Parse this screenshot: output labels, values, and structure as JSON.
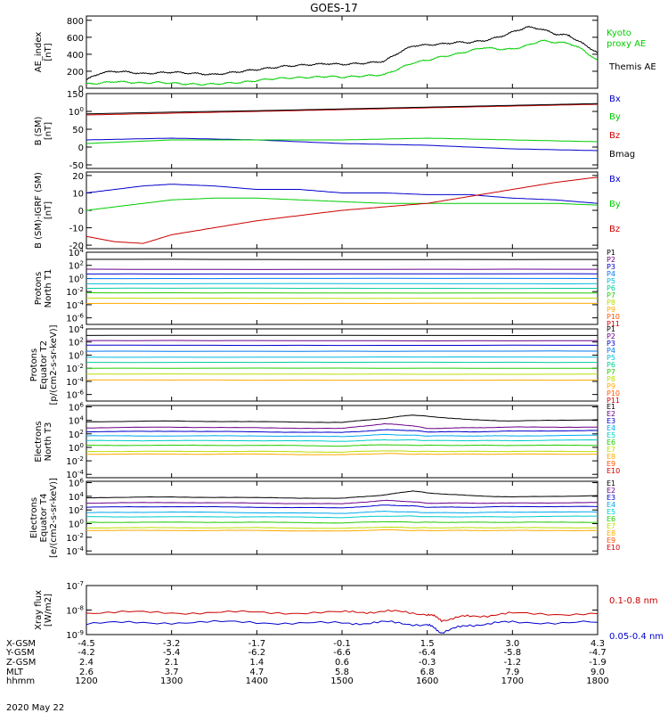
{
  "title": "GOES-17",
  "date_label": "2020 May 22",
  "orbit": {
    "rows": [
      {
        "label": "X-GSM",
        "values": [
          "-4.5",
          "-3.2",
          "-1.7",
          "-0.1",
          "1.5",
          "3.0",
          "4.3"
        ]
      },
      {
        "label": "Y-GSM",
        "values": [
          "-4.2",
          "-5.4",
          "-6.2",
          "-6.6",
          "-6.4",
          "-5.8",
          "-4.7"
        ]
      },
      {
        "label": "Z-GSM",
        "values": [
          "2.4",
          "2.1",
          "1.4",
          "0.6",
          "-0.3",
          "-1.2",
          "-1.9"
        ]
      },
      {
        "label": "MLT",
        "values": [
          "2.6",
          "3.7",
          "4.7",
          "5.8",
          "6.8",
          "7.9",
          "9.0"
        ]
      },
      {
        "label": "hhmm",
        "values": [
          "1200",
          "1300",
          "1400",
          "1500",
          "1600",
          "1700",
          "1800"
        ]
      }
    ]
  },
  "chart_data": [
    {
      "type": "line",
      "ylabel": "AE_index [nT]",
      "yscale": "linear",
      "ylim": [
        0,
        850
      ],
      "yticks": [
        "0",
        "200",
        "400",
        "600",
        "800"
      ],
      "legend": [
        {
          "name": "Kyoto proxy AE",
          "color": "#00cc00"
        },
        {
          "name": "Themis AE",
          "color": "#000000"
        }
      ],
      "x": [
        1200,
        1210,
        1220,
        1230,
        1240,
        1250,
        1300,
        1310,
        1320,
        1330,
        1340,
        1350,
        1400,
        1410,
        1420,
        1430,
        1440,
        1450,
        1500,
        1510,
        1520,
        1530,
        1540,
        1550,
        1600,
        1610,
        1620,
        1630,
        1640,
        1650,
        1700,
        1710,
        1720,
        1730,
        1740,
        1750,
        1800
      ],
      "series": [
        {
          "name": "Themis AE",
          "color": "#000000",
          "values": [
            100,
            180,
            200,
            190,
            170,
            180,
            190,
            180,
            170,
            160,
            180,
            200,
            220,
            240,
            260,
            270,
            280,
            290,
            280,
            290,
            300,
            320,
            420,
            500,
            510,
            520,
            540,
            540,
            560,
            600,
            660,
            720,
            700,
            640,
            620,
            520,
            420
          ]
        },
        {
          "name": "Kyoto proxy AE",
          "color": "#00cc00",
          "values": [
            50,
            60,
            80,
            70,
            60,
            70,
            60,
            50,
            45,
            50,
            60,
            70,
            90,
            110,
            120,
            125,
            130,
            140,
            130,
            140,
            150,
            160,
            230,
            300,
            330,
            370,
            400,
            440,
            480,
            460,
            460,
            500,
            560,
            540,
            530,
            450,
            320
          ]
        }
      ]
    },
    {
      "type": "line",
      "ylabel": "B (SM) [nT]",
      "yscale": "linear",
      "ylim": [
        -60,
        150
      ],
      "yticks": [
        "-50",
        "0",
        "50",
        "100",
        "150"
      ],
      "legend": [
        {
          "name": "Bx",
          "color": "#0000cc"
        },
        {
          "name": "By",
          "color": "#00cc00"
        },
        {
          "name": "Bz",
          "color": "#cc0000"
        },
        {
          "name": "Bmag",
          "color": "#000000"
        }
      ],
      "x": [
        1200,
        1300,
        1400,
        1500,
        1600,
        1700,
        1800
      ],
      "series": [
        {
          "name": "Bx",
          "color": "#0000cc",
          "values": [
            20,
            25,
            20,
            10,
            5,
            -5,
            -10
          ]
        },
        {
          "name": "By",
          "color": "#00cc00",
          "values": [
            10,
            20,
            20,
            20,
            25,
            20,
            15
          ]
        },
        {
          "name": "Bz",
          "color": "#cc0000",
          "values": [
            90,
            95,
            100,
            105,
            110,
            115,
            120
          ]
        },
        {
          "name": "Bmag",
          "color": "#000000",
          "values": [
            93,
            98,
            102,
            107,
            112,
            117,
            122
          ]
        }
      ]
    },
    {
      "type": "line",
      "ylabel": "B (SM)-IGRF (SM) [nT]",
      "yscale": "linear",
      "ylim": [
        -22,
        22
      ],
      "yticks": [
        "-20",
        "-10",
        "0",
        "10",
        "20"
      ],
      "legend": [
        {
          "name": "Bx",
          "color": "#0000cc"
        },
        {
          "name": "By",
          "color": "#00cc00"
        },
        {
          "name": "Bz",
          "color": "#cc0000"
        }
      ],
      "x": [
        1200,
        1220,
        1240,
        1300,
        1330,
        1400,
        1430,
        1500,
        1530,
        1600,
        1630,
        1700,
        1730,
        1800
      ],
      "series": [
        {
          "name": "Bx",
          "color": "#0000cc",
          "values": [
            10,
            12,
            14,
            15,
            14,
            12,
            12,
            10,
            10,
            9,
            9,
            7,
            6,
            4
          ]
        },
        {
          "name": "By",
          "color": "#00cc00",
          "values": [
            0,
            2,
            4,
            6,
            7,
            7,
            6,
            5,
            4,
            4,
            4,
            4,
            4,
            3
          ]
        },
        {
          "name": "Bz",
          "color": "#cc0000",
          "values": [
            -15,
            -18,
            -19,
            -14,
            -10,
            -6,
            -3,
            0,
            2,
            4,
            8,
            12,
            16,
            19
          ]
        }
      ]
    },
    {
      "type": "line",
      "ylabel": "Protons North T1",
      "yscale": "log",
      "ylim": [
        -7,
        4
      ],
      "yticks": [
        "10-6",
        "10-4",
        "10-2",
        "100",
        "102",
        "104"
      ],
      "legend": [
        {
          "name": "P1",
          "color": "#000000"
        },
        {
          "name": "P2",
          "color": "#6a0088"
        },
        {
          "name": "P3",
          "color": "#0000cc"
        },
        {
          "name": "P4",
          "color": "#0077ee"
        },
        {
          "name": "P5",
          "color": "#00bbdd"
        },
        {
          "name": "P6",
          "color": "#00cc99"
        },
        {
          "name": "P7",
          "color": "#22cc00"
        },
        {
          "name": "P8",
          "color": "#bbdd00"
        },
        {
          "name": "P9",
          "color": "#ffaa00"
        },
        {
          "name": "P10",
          "color": "#ff5500"
        },
        {
          "name": "P11",
          "color": "#cc0000"
        }
      ],
      "series": [
        {
          "name": "P1",
          "values": [
            2.9,
            2.9
          ]
        },
        {
          "name": "P2",
          "values": [
            1.4,
            1.4
          ]
        },
        {
          "name": "P3",
          "values": [
            0.7,
            0.7
          ]
        },
        {
          "name": "P4",
          "values": [
            0,
            0
          ]
        },
        {
          "name": "P5",
          "values": [
            -0.8,
            -0.8
          ]
        },
        {
          "name": "P6",
          "values": [
            -1.5,
            -1.5
          ]
        },
        {
          "name": "P7",
          "values": [
            -2.2,
            -2.2
          ]
        },
        {
          "name": "P8",
          "values": [
            -3.0,
            -3.0
          ]
        },
        {
          "name": "P9",
          "values": [
            -3.8,
            -3.8
          ]
        }
      ]
    },
    {
      "type": "line",
      "ylabel": "Protons Equator T2 [p/(cm2-s-sr-keV)]",
      "yscale": "log",
      "ylim": [
        -7,
        4
      ],
      "yticks": [
        "10-6",
        "10-4",
        "10-2",
        "100",
        "102",
        "104"
      ],
      "legend": [
        {
          "name": "P1",
          "color": "#000000"
        },
        {
          "name": "P2",
          "color": "#6a0088"
        },
        {
          "name": "P3",
          "color": "#0000cc"
        },
        {
          "name": "P4",
          "color": "#0077ee"
        },
        {
          "name": "P5",
          "color": "#00bbdd"
        },
        {
          "name": "P6",
          "color": "#00cc99"
        },
        {
          "name": "P7",
          "color": "#22cc00"
        },
        {
          "name": "P8",
          "color": "#bbdd00"
        },
        {
          "name": "P9",
          "color": "#ffaa00"
        },
        {
          "name": "P10",
          "color": "#ff5500"
        },
        {
          "name": "P11",
          "color": "#cc0000"
        }
      ],
      "series": [
        {
          "name": "P1",
          "values": [
            3.0,
            3.0
          ]
        },
        {
          "name": "P2",
          "values": [
            2.2,
            2.2
          ]
        },
        {
          "name": "P3",
          "values": [
            1.5,
            1.5
          ]
        },
        {
          "name": "P4",
          "values": [
            0.6,
            0.6
          ]
        },
        {
          "name": "P5",
          "values": [
            -0.3,
            -0.3
          ]
        },
        {
          "name": "P6",
          "values": [
            -1.1,
            -1.1
          ]
        },
        {
          "name": "P7",
          "values": [
            -2.0,
            -2.0
          ]
        },
        {
          "name": "P8",
          "values": [
            -2.9,
            -2.9
          ]
        },
        {
          "name": "P9",
          "values": [
            -3.8,
            -3.8
          ]
        }
      ]
    },
    {
      "type": "line",
      "ylabel": "Electrons North T3",
      "yscale": "log",
      "ylim": [
        -4.5,
        6.2
      ],
      "yticks": [
        "10-4",
        "10-2",
        "100",
        "102",
        "104",
        "106"
      ],
      "legend": [
        {
          "name": "E1",
          "color": "#000000"
        },
        {
          "name": "E2",
          "color": "#6a0088"
        },
        {
          "name": "E3",
          "color": "#0000cc"
        },
        {
          "name": "E4",
          "color": "#00aaee"
        },
        {
          "name": "E5",
          "color": "#00cccc"
        },
        {
          "name": "E6",
          "color": "#22cc00"
        },
        {
          "name": "E7",
          "color": "#bbdd00"
        },
        {
          "name": "E8",
          "color": "#ffaa00"
        },
        {
          "name": "E9",
          "color": "#ff5500"
        },
        {
          "name": "E10",
          "color": "#cc0000"
        }
      ],
      "x": [
        1200,
        1300,
        1400,
        1500,
        1530,
        1550,
        1600,
        1630,
        1700,
        1800
      ],
      "series": [
        {
          "name": "E1",
          "values": [
            3.8,
            3.9,
            3.8,
            3.7,
            4.3,
            4.8,
            4.6,
            4.1,
            3.9,
            4.1
          ]
        },
        {
          "name": "E2",
          "values": [
            2.9,
            3.0,
            2.9,
            2.8,
            3.5,
            3.2,
            2.8,
            2.9,
            3.0,
            3.0
          ]
        },
        {
          "name": "E3",
          "values": [
            2.3,
            2.4,
            2.3,
            2.2,
            2.6,
            2.5,
            2.3,
            2.3,
            2.4,
            2.5
          ]
        },
        {
          "name": "E4",
          "values": [
            1.7,
            1.7,
            1.7,
            1.6,
            1.9,
            1.8,
            1.7,
            1.7,
            1.7,
            1.8
          ]
        },
        {
          "name": "E5",
          "values": [
            1.0,
            1.0,
            1.0,
            0.9,
            1.1,
            1.1,
            1.0,
            1.0,
            1.0,
            1.1
          ]
        },
        {
          "name": "E6",
          "values": [
            0.3,
            0.3,
            0.3,
            0.2,
            0.4,
            0.3,
            0.3,
            0.3,
            0.3,
            0.3
          ]
        },
        {
          "name": "E7",
          "values": [
            -0.6,
            -0.6,
            -0.6,
            -0.7,
            -0.5,
            -0.6,
            -0.6,
            -0.6,
            -0.6,
            -0.6
          ]
        },
        {
          "name": "E8",
          "values": [
            -1.0,
            -1.0,
            -1.0,
            -1.1,
            -0.9,
            -1.0,
            -1.0,
            -1.0,
            -1.0,
            -1.0
          ]
        }
      ]
    },
    {
      "type": "line",
      "ylabel": "Electrons Equator T4 [e/(cm2-s-sr-keV)]",
      "yscale": "log",
      "ylim": [
        -4.5,
        6.2
      ],
      "yticks": [
        "10-4",
        "10-2",
        "100",
        "102",
        "104",
        "106"
      ],
      "legend": [
        {
          "name": "E1",
          "color": "#000000"
        },
        {
          "name": "E2",
          "color": "#6a0088"
        },
        {
          "name": "E3",
          "color": "#0000cc"
        },
        {
          "name": "E4",
          "color": "#00aaee"
        },
        {
          "name": "E5",
          "color": "#00cccc"
        },
        {
          "name": "E6",
          "color": "#22cc00"
        },
        {
          "name": "E7",
          "color": "#bbdd00"
        },
        {
          "name": "E8",
          "color": "#ffaa00"
        },
        {
          "name": "E9",
          "color": "#ff5500"
        },
        {
          "name": "E10",
          "color": "#cc0000"
        }
      ],
      "x": [
        1200,
        1300,
        1400,
        1500,
        1530,
        1550,
        1600,
        1630,
        1700,
        1800
      ],
      "series": [
        {
          "name": "E1",
          "values": [
            3.8,
            3.9,
            3.8,
            3.7,
            4.2,
            4.8,
            4.5,
            4.1,
            3.9,
            4.1
          ]
        },
        {
          "name": "E2",
          "values": [
            3.0,
            3.1,
            3.0,
            2.9,
            3.4,
            3.2,
            3.0,
            3.0,
            3.0,
            3.1
          ]
        },
        {
          "name": "E3",
          "values": [
            2.4,
            2.5,
            2.4,
            2.3,
            2.7,
            2.6,
            2.4,
            2.4,
            2.5,
            2.5
          ]
        },
        {
          "name": "E4",
          "values": [
            1.6,
            1.7,
            1.6,
            1.5,
            1.8,
            1.7,
            1.6,
            1.6,
            1.7,
            1.7
          ]
        },
        {
          "name": "E5",
          "values": [
            1.0,
            1.0,
            1.0,
            0.9,
            1.1,
            1.1,
            1.0,
            1.0,
            1.0,
            1.1
          ]
        },
        {
          "name": "E6",
          "values": [
            0.2,
            0.2,
            0.2,
            0.1,
            0.3,
            0.2,
            0.2,
            0.2,
            0.2,
            0.2
          ]
        },
        {
          "name": "E7",
          "values": [
            -0.6,
            -0.6,
            -0.6,
            -0.7,
            -0.5,
            -0.6,
            -0.6,
            -0.6,
            -0.6,
            -0.6
          ]
        },
        {
          "name": "E8",
          "values": [
            -1.0,
            -1.0,
            -1.0,
            -1.1,
            -0.9,
            -1.0,
            -1.0,
            -1.0,
            -1.0,
            -1.0
          ]
        }
      ]
    },
    {
      "type": "line",
      "ylabel": "Xray flux [W/m2]",
      "yscale": "log",
      "ylim": [
        -9,
        -7
      ],
      "yticks": [
        "10-9",
        "10-8",
        "10-7"
      ],
      "legend": [
        {
          "name": "0.1-0.8 nm",
          "color": "#cc0000"
        },
        {
          "name": "0.05-0.4 nm",
          "color": "#0000cc"
        }
      ],
      "x": [
        1200,
        1300,
        1400,
        1500,
        1530,
        1600,
        1610,
        1630,
        1700,
        1800
      ],
      "series": [
        {
          "name": "0.1-0.8 nm",
          "color": "#cc0000",
          "values": [
            -8.1,
            -8.1,
            -8.1,
            -8.1,
            -8.05,
            -8.15,
            -8.4,
            -8.25,
            -8.15,
            -8.15
          ]
        },
        {
          "name": "0.05-0.4 nm",
          "color": "#0000cc",
          "values": [
            -8.55,
            -8.5,
            -8.5,
            -8.55,
            -8.5,
            -8.6,
            -8.9,
            -8.6,
            -8.5,
            -8.5
          ]
        }
      ]
    }
  ]
}
